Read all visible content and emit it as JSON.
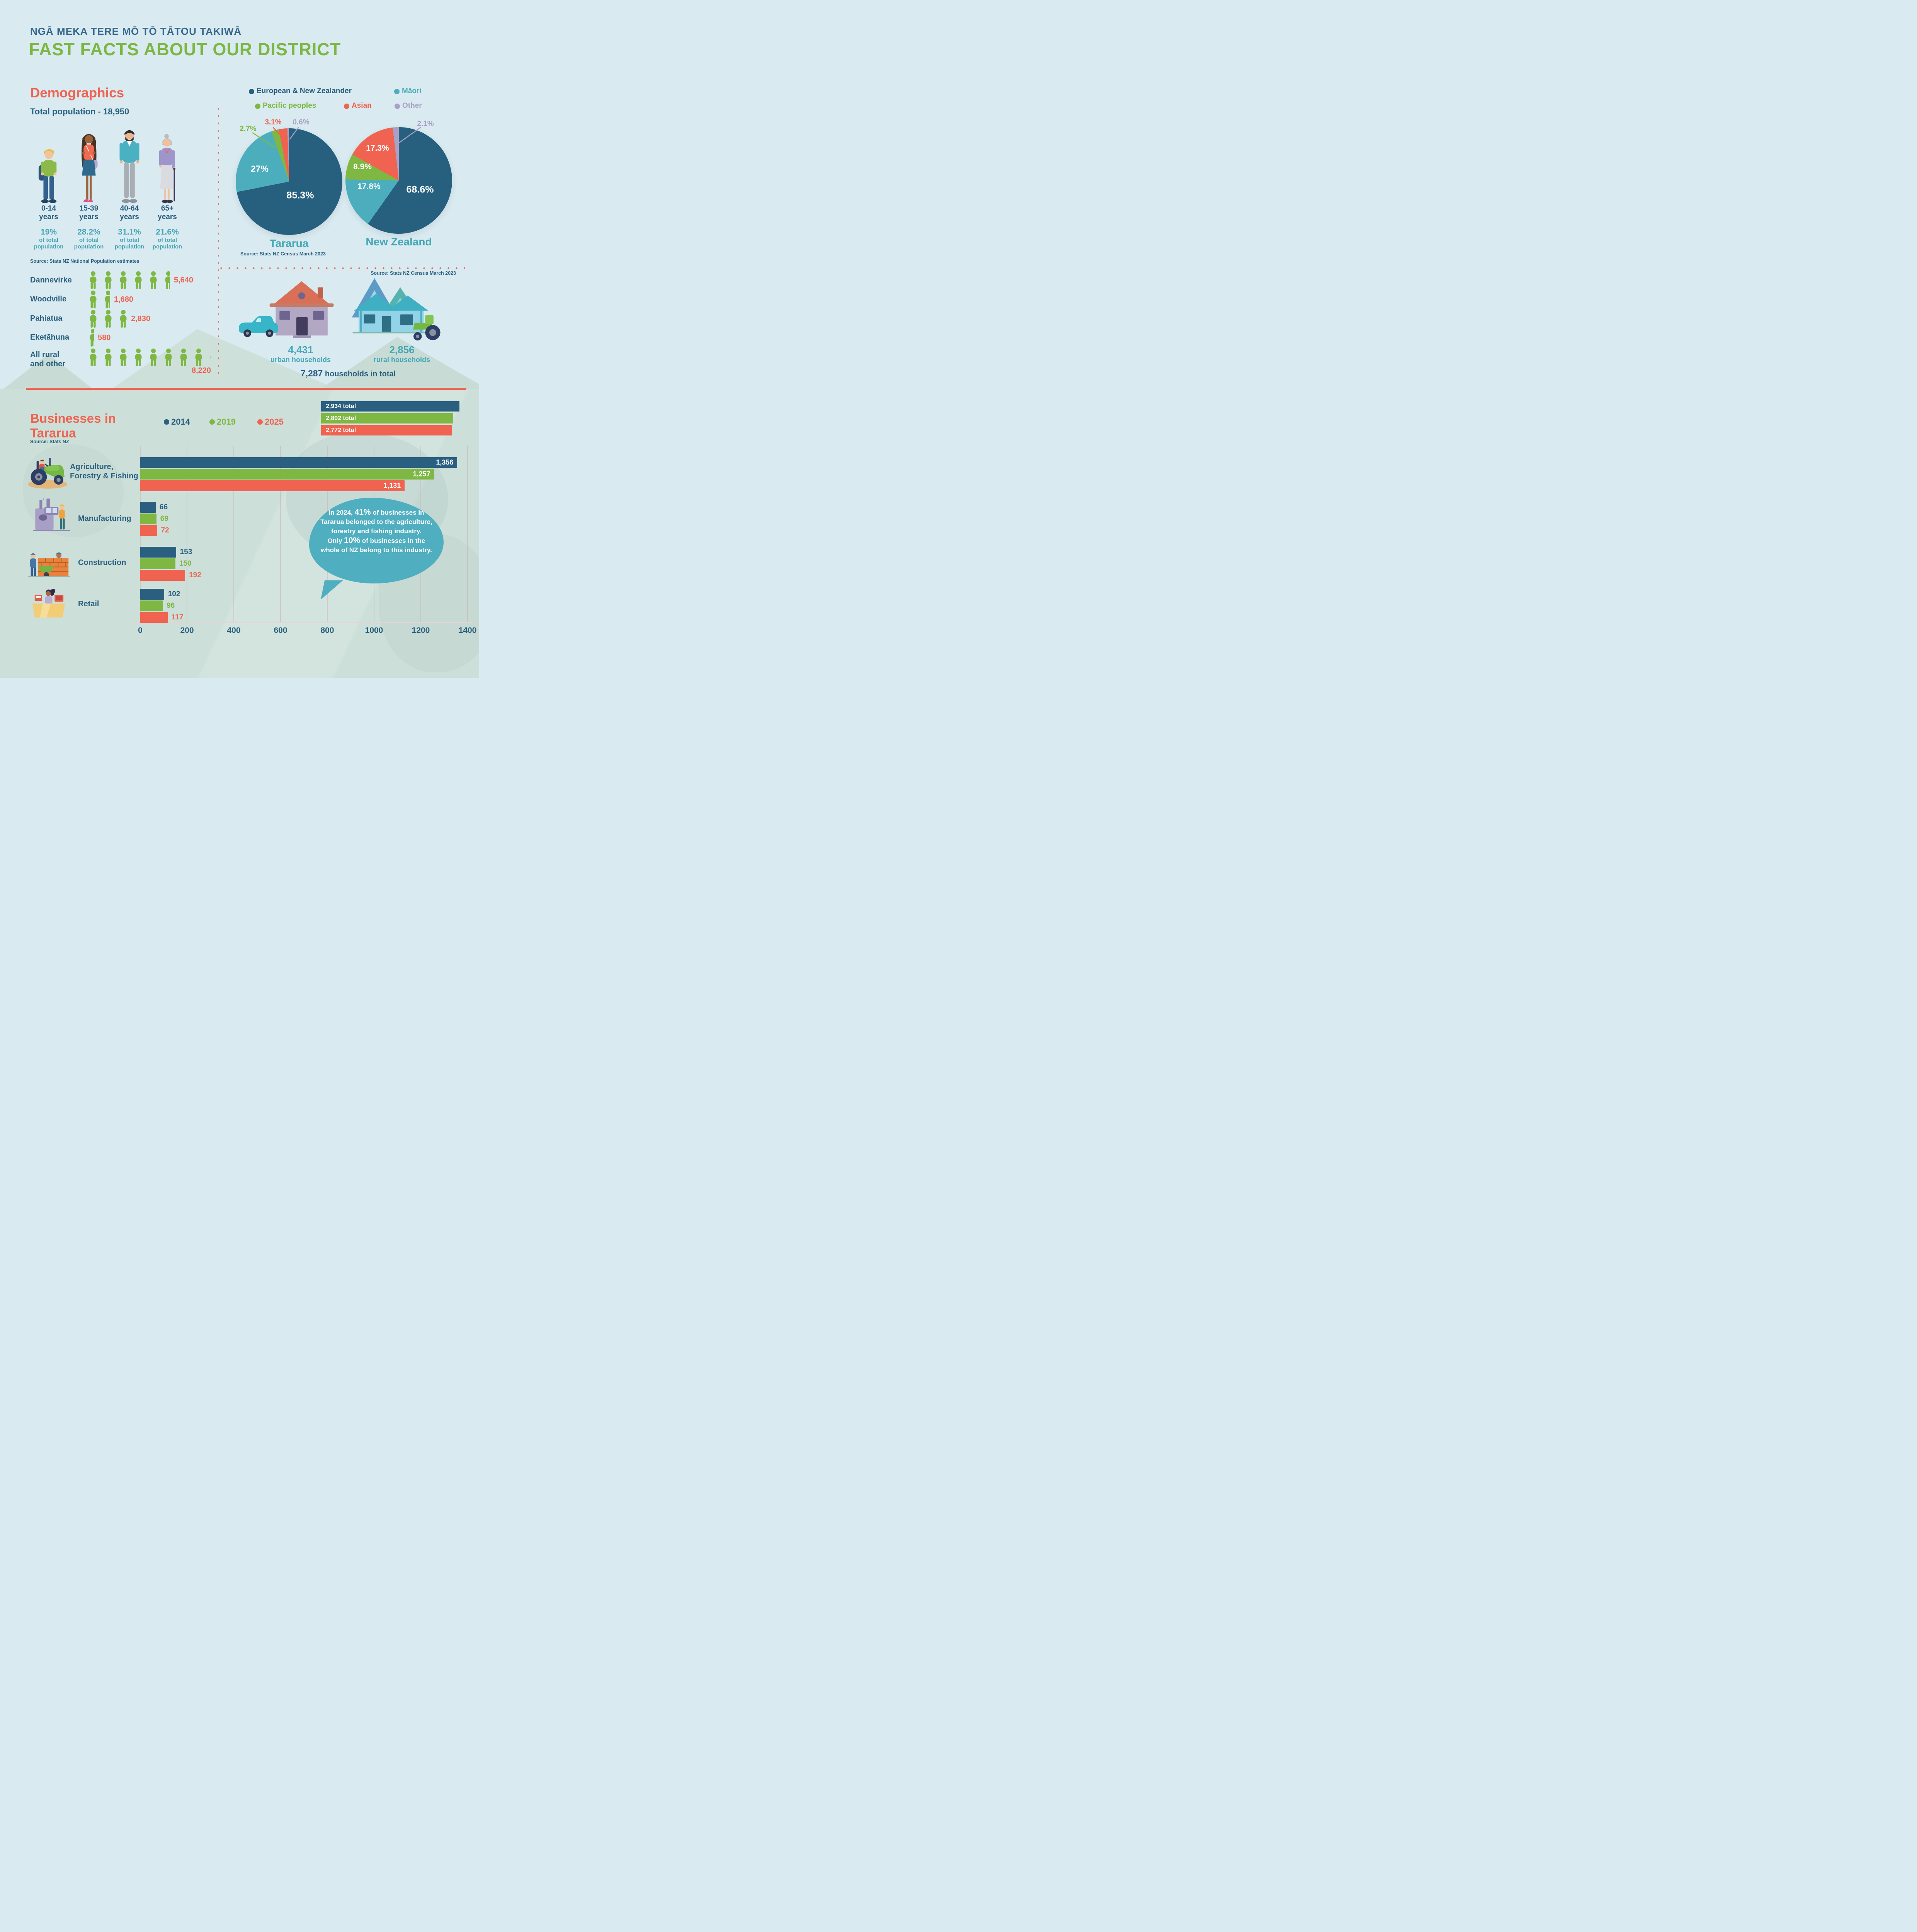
{
  "palette": {
    "navy": "#27607f",
    "teal": "#4caebc",
    "green": "#7eb843",
    "coral": "#ef6350",
    "lavender": "#a9a1c5"
  },
  "header": {
    "kicker": "NGĀ MEKA TERE MŌ TŌ TĀTOU TAKIWĀ",
    "title": "FAST FACTS ABOUT OUR DISTRICT"
  },
  "demographics": {
    "heading": "Demographics",
    "total_label": "Total population - 18,950",
    "suffix_line1": "of total",
    "suffix_line2": "population",
    "years_word": "years",
    "age_groups": [
      {
        "range": "0-14",
        "percent": "19%"
      },
      {
        "range": "15-39",
        "percent": "28.2%"
      },
      {
        "range": "40-64",
        "percent": "31.1%"
      },
      {
        "range": "65+",
        "percent": "21.6%"
      }
    ],
    "source": "Source: Stats NZ National Population estimates"
  },
  "ethnicity": {
    "legend": [
      {
        "label": "European & New Zealander",
        "color": "#27607f"
      },
      {
        "label": "Māori",
        "color": "#4caebc"
      },
      {
        "label": "Pacific peoples",
        "color": "#7eb843"
      },
      {
        "label": "Asian",
        "color": "#ef6350"
      },
      {
        "label": "Other",
        "color": "#a9a1c5"
      }
    ],
    "tararua": {
      "name": "Tararua",
      "slices": [
        {
          "label": "85.3%",
          "value": 85.3,
          "color": "#27607f"
        },
        {
          "label": "27%",
          "value": 27,
          "color": "#4caebc"
        },
        {
          "label": "2.7%",
          "value": 2.7,
          "color": "#7eb843"
        },
        {
          "label": "3.1%",
          "value": 3.1,
          "color": "#ef6350"
        },
        {
          "label": "0.6%",
          "value": 0.6,
          "color": "#a9a1c5"
        }
      ]
    },
    "nz": {
      "name": "New Zealand",
      "slices": [
        {
          "label": "68.6%",
          "value": 68.6,
          "color": "#27607f"
        },
        {
          "label": "17.8%",
          "value": 17.8,
          "color": "#4caebc"
        },
        {
          "label": "8.9%",
          "value": 8.9,
          "color": "#7eb843"
        },
        {
          "label": "17.3%",
          "value": 17.3,
          "color": "#ef6350"
        },
        {
          "label": "2.1%",
          "value": 2.1,
          "color": "#a9a1c5"
        }
      ]
    },
    "source": "Source: Stats NZ Census March 2023"
  },
  "towns": {
    "rows": [
      {
        "name": "Dannevirke",
        "display": "5,640",
        "icons": 5.64
      },
      {
        "name": "Woodville",
        "display": "1,680",
        "icons": 1.68
      },
      {
        "name": "Pahiatua",
        "display": "2,830",
        "icons": 2.83
      },
      {
        "name": "Eketāhuna",
        "display": "580",
        "icons": 0.58
      },
      {
        "name_line1": "All rural",
        "name_line2": "and other",
        "display": "8,220",
        "icons": 8.22
      }
    ]
  },
  "households": {
    "source": "Source: Stats NZ Census March 2023",
    "urban_value": "4,431",
    "urban_label": "urban households",
    "rural_value": "2,856",
    "rural_label": "rural households",
    "total_value": "7,287",
    "total_label": " households in total"
  },
  "businesses": {
    "heading_line1": "Businesses in",
    "heading_line2": "Tararua",
    "source": "Source: Stats NZ",
    "axis_max": 1400,
    "totals_max": 2934,
    "years": [
      {
        "label": "2014",
        "color": "#2a5f80"
      },
      {
        "label": "2019",
        "color": "#7eb843"
      },
      {
        "label": "2025",
        "color": "#ef6350"
      }
    ],
    "totals": [
      {
        "display": "2,934 total",
        "value": 2934,
        "color": "#2a5f80"
      },
      {
        "display": "2,802 total",
        "value": 2802,
        "color": "#7eb843"
      },
      {
        "display": "2,772 total",
        "value": 2772,
        "color": "#ef6350"
      }
    ],
    "categories": [
      {
        "line1": "Agriculture,",
        "line2": "Forestry & Fishing",
        "bars": [
          {
            "value": 1356,
            "display": "1,356"
          },
          {
            "value": 1257,
            "display": "1,257"
          },
          {
            "value": 1131,
            "display": "1,131"
          }
        ]
      },
      {
        "line1": "Manufacturing",
        "bars": [
          {
            "value": 66,
            "display": "66"
          },
          {
            "value": 69,
            "display": "69"
          },
          {
            "value": 72,
            "display": "72"
          }
        ]
      },
      {
        "line1": "Construction",
        "bars": [
          {
            "value": 153,
            "display": "153"
          },
          {
            "value": 150,
            "display": "150"
          },
          {
            "value": 192,
            "display": "192"
          }
        ]
      },
      {
        "line1": "Retail",
        "bars": [
          {
            "value": 102,
            "display": "102"
          },
          {
            "value": 96,
            "display": "96"
          },
          {
            "value": 117,
            "display": "117"
          }
        ]
      }
    ],
    "axis_ticks": [
      "0",
      "200",
      "400",
      "600",
      "800",
      "1000",
      "1200",
      "1400"
    ],
    "callout": {
      "p1": "In 2024, ",
      "b1": "41%",
      "p2": " of businesses in Tararua belonged to the agriculture, forestry and fishing industry.",
      "p3": "Only ",
      "b2": "10%",
      "p4": " of businesses in the whole of NZ belong to this industry."
    }
  },
  "chart_data": [
    {
      "type": "pie",
      "title": "Tararua ethnicity (Stats NZ Census March 2023)",
      "labels": [
        "European & New Zealander",
        "Māori",
        "Pacific peoples",
        "Asian",
        "Other"
      ],
      "values": [
        85.3,
        27,
        2.7,
        3.1,
        0.6
      ],
      "unit": "%",
      "note": "multi-response percentages"
    },
    {
      "type": "pie",
      "title": "New Zealand ethnicity (Stats NZ Census March 2023)",
      "labels": [
        "European & New Zealander",
        "Māori",
        "Pacific peoples",
        "Asian",
        "Other"
      ],
      "values": [
        68.6,
        17.8,
        8.9,
        17.3,
        2.1
      ],
      "unit": "%",
      "note": "multi-response percentages"
    },
    {
      "type": "table",
      "title": "Age distribution (% of total population)",
      "categories": [
        "0-14 years",
        "15-39 years",
        "40-64 years",
        "65+ years"
      ],
      "values": [
        19,
        28.2,
        31.1,
        21.6
      ]
    },
    {
      "type": "bar",
      "title": "Population by town (pictogram)",
      "categories": [
        "Dannevirke",
        "Woodville",
        "Pahiatua",
        "Eketāhuna",
        "All rural and other"
      ],
      "values": [
        5640,
        1680,
        2830,
        580,
        8220
      ]
    },
    {
      "type": "table",
      "title": "Households (Stats NZ Census March 2023)",
      "categories": [
        "urban households",
        "rural households",
        "households in total"
      ],
      "values": [
        4431,
        2856,
        7287
      ]
    },
    {
      "type": "bar",
      "title": "Businesses in Tararua (Stats NZ)",
      "categories": [
        "Agriculture, Forestry & Fishing",
        "Manufacturing",
        "Construction",
        "Retail"
      ],
      "series": [
        {
          "name": "2014",
          "values": [
            1356,
            66,
            153,
            102
          ],
          "total": 2934
        },
        {
          "name": "2019",
          "values": [
            1257,
            69,
            150,
            96
          ],
          "total": 2802
        },
        {
          "name": "2025",
          "values": [
            1131,
            72,
            192,
            117
          ],
          "total": 2772
        }
      ],
      "xlabel": "",
      "ylabel": "",
      "xlim": [
        0,
        1400
      ],
      "ticks": [
        0,
        200,
        400,
        600,
        800,
        1000,
        1200,
        1400
      ],
      "grid": true,
      "legend_position": "top"
    }
  ]
}
